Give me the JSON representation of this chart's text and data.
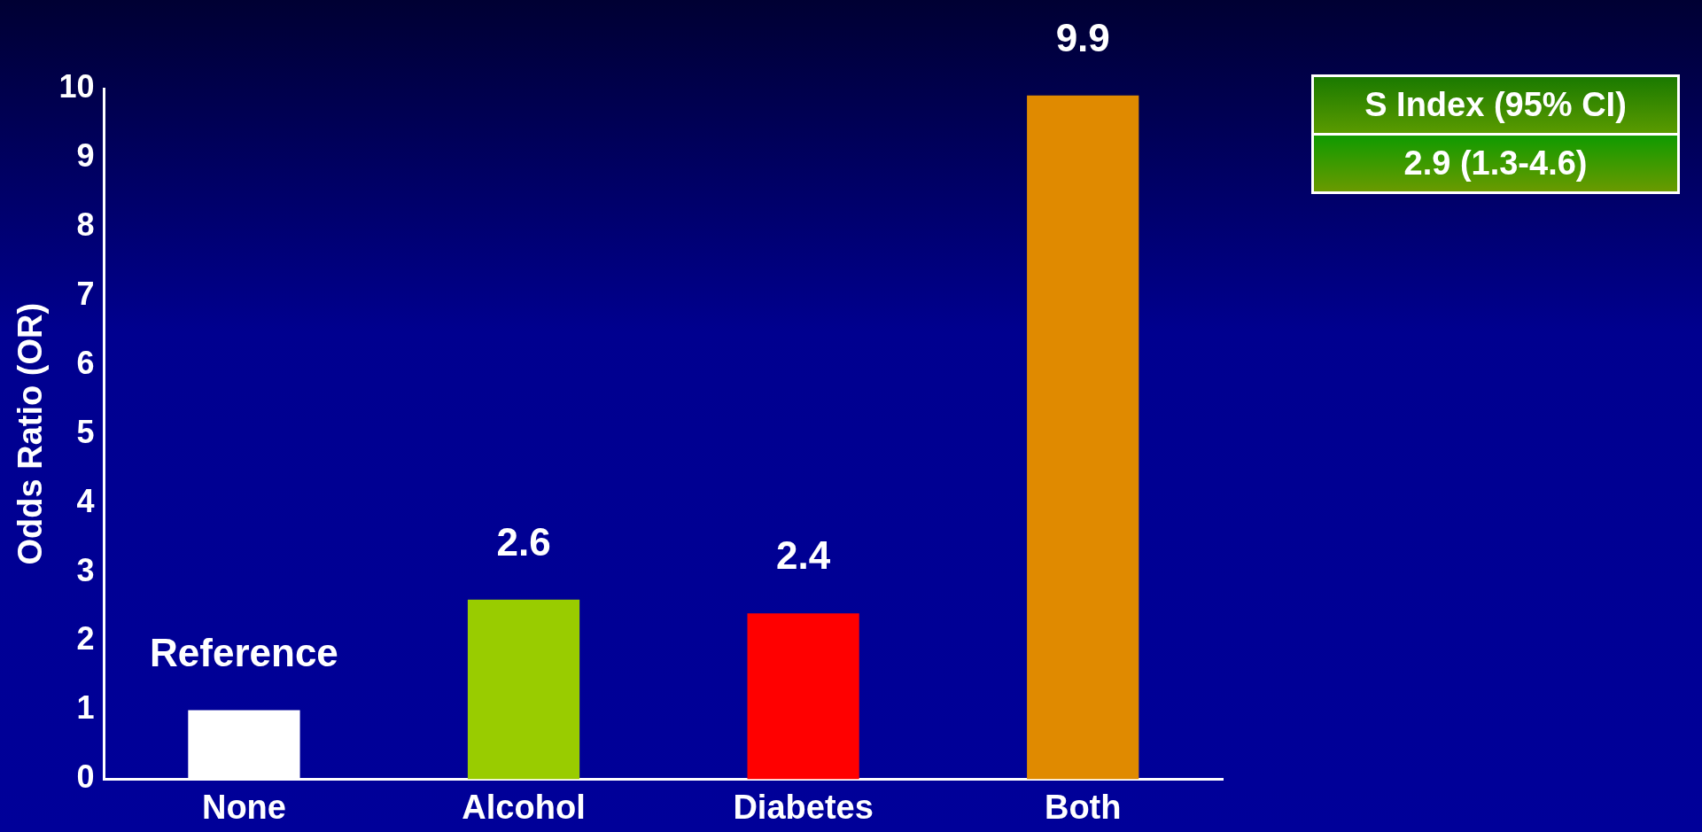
{
  "chart_data": {
    "type": "bar",
    "ylabel": "Odds Ratio (OR)",
    "categories": [
      "None",
      "Alcohol",
      "Diabetes",
      "Both"
    ],
    "values": [
      1,
      2.6,
      2.4,
      9.9
    ],
    "colors": [
      "#ffffff",
      "#99cc00",
      "#ff0000",
      "#e08a00"
    ],
    "value_labels": [
      "Reference",
      "2.6",
      "2.4",
      "9.9"
    ],
    "ylim": [
      0,
      10
    ],
    "yticks": [
      0,
      1,
      2,
      3,
      4,
      5,
      6,
      7,
      8,
      9,
      10
    ],
    "grid": false,
    "legend": false,
    "annotations": [
      "S Index (95% CI)",
      "2.9 (1.3-4.6)"
    ]
  }
}
